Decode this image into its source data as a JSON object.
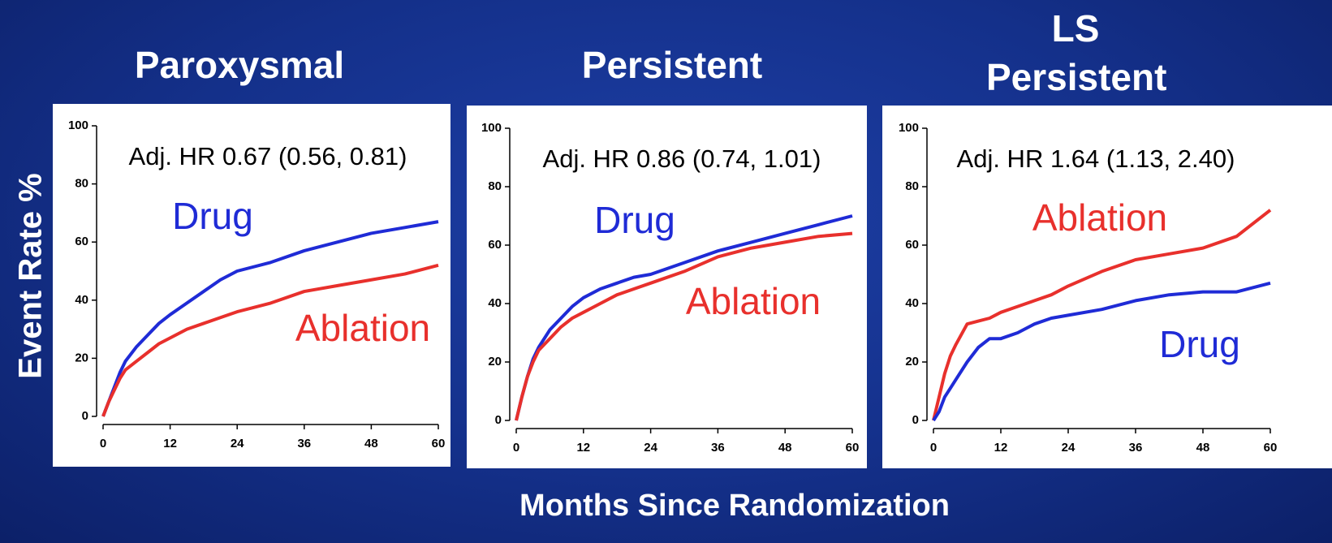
{
  "y_label": "Event Rate %",
  "x_label": "Months Since Randomization",
  "chart_data": [
    {
      "type": "line",
      "title": "Paroxysmal",
      "annotation": "Adj.  HR 0.67 (0.56, 0.81)",
      "x": [
        0,
        1,
        2,
        3,
        4,
        6,
        8,
        10,
        12,
        15,
        18,
        21,
        24,
        30,
        36,
        42,
        48,
        54,
        60
      ],
      "series": [
        {
          "name": "Drug",
          "color": "#1f2bd6",
          "values": [
            0,
            5,
            10,
            15,
            19,
            24,
            28,
            32,
            35,
            39,
            43,
            47,
            50,
            53,
            57,
            60,
            63,
            65,
            67
          ]
        },
        {
          "name": "Ablation",
          "color": "#e8302c",
          "values": [
            0,
            5,
            9,
            13,
            16,
            19,
            22,
            25,
            27,
            30,
            32,
            34,
            36,
            39,
            43,
            45,
            47,
            49,
            52
          ]
        }
      ],
      "xlim": [
        0,
        60
      ],
      "xticks": [
        0,
        12,
        24,
        36,
        48,
        60
      ],
      "ylim": [
        0,
        100
      ],
      "yticks": [
        0,
        20,
        40,
        60,
        80,
        100
      ]
    },
    {
      "type": "line",
      "title": "Persistent",
      "annotation": "Adj.  HR 0.86 (0.74, 1.01)",
      "x": [
        0,
        1,
        2,
        3,
        4,
        6,
        8,
        10,
        12,
        15,
        18,
        21,
        24,
        30,
        36,
        42,
        48,
        54,
        60
      ],
      "series": [
        {
          "name": "Drug",
          "color": "#1f2bd6",
          "values": [
            0,
            8,
            15,
            21,
            25,
            31,
            35,
            39,
            42,
            45,
            47,
            49,
            50,
            54,
            58,
            61,
            64,
            67,
            70
          ]
        },
        {
          "name": "Ablation",
          "color": "#e8302c",
          "values": [
            0,
            8,
            15,
            20,
            24,
            28,
            32,
            35,
            37,
            40,
            43,
            45,
            47,
            51,
            56,
            59,
            61,
            63,
            64
          ]
        }
      ],
      "xlim": [
        0,
        60
      ],
      "xticks": [
        0,
        12,
        24,
        36,
        48,
        60
      ],
      "ylim": [
        0,
        100
      ],
      "yticks": [
        0,
        20,
        40,
        60,
        80,
        100
      ]
    },
    {
      "type": "line",
      "title": "LS Persistent",
      "annotation": "Adj.  HR 1.64 (1.13, 2.40)",
      "x": [
        0,
        1,
        2,
        3,
        4,
        6,
        8,
        10,
        12,
        15,
        18,
        21,
        24,
        30,
        36,
        42,
        48,
        54,
        60
      ],
      "series": [
        {
          "name": "Ablation",
          "color": "#e8302c",
          "values": [
            0,
            8,
            16,
            22,
            26,
            33,
            34,
            35,
            37,
            39,
            41,
            43,
            46,
            51,
            55,
            57,
            59,
            63,
            72
          ]
        },
        {
          "name": "Drug",
          "color": "#1f2bd6",
          "values": [
            0,
            3,
            8,
            11,
            14,
            20,
            25,
            28,
            28,
            30,
            33,
            35,
            36,
            38,
            41,
            43,
            44,
            44,
            47
          ]
        }
      ],
      "xlim": [
        0,
        60
      ],
      "xticks": [
        0,
        12,
        24,
        36,
        48,
        60
      ],
      "ylim": [
        0,
        100
      ],
      "yticks": [
        0,
        20,
        40,
        60,
        80,
        100
      ]
    }
  ]
}
